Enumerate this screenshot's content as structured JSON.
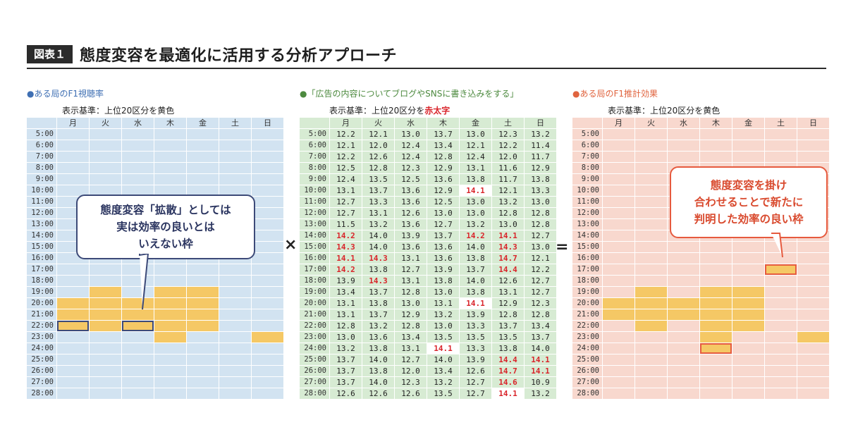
{
  "figure": {
    "label": "図表１",
    "title": "態度変容を最適化に活用する分析アプローチ"
  },
  "operators": {
    "times": "×",
    "equals": "="
  },
  "colors": {
    "blue_bg": "#d2e3f1",
    "green_bg": "#d7ebd3",
    "salmon_bg": "#f8d8ce",
    "highlight": "#f5c865",
    "red_text": "#d9252b",
    "callout_blue": "#3d4a78",
    "callout_red": "#e65a3e"
  },
  "chart_data": [
    {
      "type": "heatmap",
      "title": "●ある局のF1視聴率",
      "subtitle": "表示基準：上位20区分を黄色",
      "columns": [
        "月",
        "火",
        "水",
        "木",
        "金",
        "土",
        "日"
      ],
      "rows": [
        "5:00",
        "6:00",
        "7:00",
        "8:00",
        "9:00",
        "10:00",
        "11:00",
        "12:00",
        "13:00",
        "14:00",
        "15:00",
        "16:00",
        "17:00",
        "18:00",
        "19:00",
        "20:00",
        "21:00",
        "22:00",
        "23:00",
        "24:00",
        "25:00",
        "26:00",
        "27:00",
        "28:00"
      ],
      "highlighted": [
        [
          14,
          1
        ],
        [
          14,
          3
        ],
        [
          14,
          4
        ],
        [
          15,
          0
        ],
        [
          15,
          1
        ],
        [
          15,
          2
        ],
        [
          15,
          3
        ],
        [
          15,
          4
        ],
        [
          16,
          0
        ],
        [
          16,
          1
        ],
        [
          16,
          2
        ],
        [
          16,
          3
        ],
        [
          16,
          4
        ],
        [
          17,
          0
        ],
        [
          17,
          1
        ],
        [
          17,
          2
        ],
        [
          17,
          3
        ],
        [
          17,
          4
        ],
        [
          18,
          3
        ],
        [
          18,
          6
        ]
      ],
      "boxed": [
        [
          17,
          0
        ],
        [
          17,
          2
        ]
      ],
      "callout": [
        "態度変容「拡散」としては",
        "実は効率の良いとは",
        "いえない枠"
      ]
    },
    {
      "type": "table",
      "title": "●「広告の内容についてブログやSNSに書き込みをする」",
      "subtitle_prefix": "表示基準：上位20区分を",
      "subtitle_red": "赤太字",
      "columns": [
        "月",
        "火",
        "水",
        "木",
        "金",
        "土",
        "日"
      ],
      "rows": [
        "5:00",
        "6:00",
        "7:00",
        "8:00",
        "9:00",
        "10:00",
        "11:00",
        "12:00",
        "13:00",
        "14:00",
        "15:00",
        "16:00",
        "17:00",
        "18:00",
        "19:00",
        "20:00",
        "21:00",
        "22:00",
        "23:00",
        "24:00",
        "25:00",
        "26:00",
        "27:00",
        "28:00"
      ],
      "values": [
        [
          "12.2",
          "12.1",
          "13.0",
          "13.7",
          "13.0",
          "12.3",
          "13.2"
        ],
        [
          "12.1",
          "12.0",
          "12.4",
          "13.4",
          "12.1",
          "12.2",
          "11.4"
        ],
        [
          "12.2",
          "12.6",
          "12.4",
          "12.8",
          "12.4",
          "12.0",
          "11.7"
        ],
        [
          "12.5",
          "12.8",
          "12.3",
          "12.9",
          "13.1",
          "11.6",
          "12.9"
        ],
        [
          "12.4",
          "13.5",
          "12.5",
          "13.6",
          "13.8",
          "11.7",
          "13.8"
        ],
        [
          "13.1",
          "13.7",
          "13.6",
          "12.9",
          "14.1",
          "12.1",
          "13.3"
        ],
        [
          "12.7",
          "13.3",
          "13.6",
          "12.5",
          "13.0",
          "13.2",
          "13.0"
        ],
        [
          "12.7",
          "13.1",
          "12.6",
          "13.0",
          "13.0",
          "12.8",
          "12.8"
        ],
        [
          "11.5",
          "13.2",
          "13.6",
          "12.7",
          "13.2",
          "13.0",
          "12.8"
        ],
        [
          "14.2",
          "14.0",
          "13.9",
          "13.7",
          "14.2",
          "14.1",
          "12.7"
        ],
        [
          "14.3",
          "14.0",
          "13.6",
          "13.6",
          "14.0",
          "14.3",
          "13.0"
        ],
        [
          "14.1",
          "14.3",
          "13.1",
          "13.6",
          "13.8",
          "14.7",
          "12.1"
        ],
        [
          "14.2",
          "13.8",
          "12.7",
          "13.9",
          "13.7",
          "14.4",
          "12.2"
        ],
        [
          "13.9",
          "14.3",
          "13.1",
          "13.8",
          "14.0",
          "12.6",
          "12.7"
        ],
        [
          "13.4",
          "13.7",
          "12.8",
          "13.0",
          "13.8",
          "13.1",
          "12.7"
        ],
        [
          "13.1",
          "13.8",
          "13.0",
          "13.1",
          "14.1",
          "12.9",
          "12.3"
        ],
        [
          "13.1",
          "13.7",
          "12.9",
          "13.2",
          "13.9",
          "12.8",
          "12.8"
        ],
        [
          "12.8",
          "13.2",
          "12.8",
          "13.0",
          "13.3",
          "13.7",
          "13.4"
        ],
        [
          "13.0",
          "13.6",
          "13.4",
          "13.5",
          "13.5",
          "13.5",
          "13.7"
        ],
        [
          "13.2",
          "13.8",
          "13.1",
          "14.1",
          "13.3",
          "13.8",
          "14.0"
        ],
        [
          "13.7",
          "14.0",
          "12.7",
          "14.0",
          "13.9",
          "14.4",
          "14.1"
        ],
        [
          "13.7",
          "13.8",
          "12.0",
          "13.4",
          "12.6",
          "14.7",
          "14.1"
        ],
        [
          "13.7",
          "14.0",
          "12.3",
          "13.2",
          "12.7",
          "14.6",
          "10.9"
        ],
        [
          "12.6",
          "12.6",
          "12.6",
          "13.5",
          "12.7",
          "14.1",
          "13.2"
        ]
      ],
      "red_cells": [
        [
          5,
          4
        ],
        [
          9,
          0
        ],
        [
          9,
          4
        ],
        [
          9,
          5
        ],
        [
          10,
          0
        ],
        [
          10,
          5
        ],
        [
          11,
          0
        ],
        [
          11,
          1
        ],
        [
          11,
          5
        ],
        [
          12,
          0
        ],
        [
          12,
          5
        ],
        [
          13,
          1
        ],
        [
          15,
          4
        ],
        [
          19,
          3
        ],
        [
          20,
          5
        ],
        [
          20,
          6
        ],
        [
          21,
          5
        ],
        [
          21,
          6
        ],
        [
          22,
          5
        ],
        [
          23,
          5
        ]
      ],
      "white_cells": [
        [
          5,
          4
        ],
        [
          15,
          4
        ],
        [
          19,
          3
        ],
        [
          23,
          5
        ]
      ]
    },
    {
      "type": "heatmap",
      "title": "●ある局のF1推計効果",
      "subtitle": "表示基準：上位20区分を黄色",
      "columns": [
        "月",
        "火",
        "水",
        "木",
        "金",
        "土",
        "日"
      ],
      "rows": [
        "5:00",
        "6:00",
        "7:00",
        "8:00",
        "9:00",
        "10:00",
        "11:00",
        "12:00",
        "13:00",
        "14:00",
        "15:00",
        "16:00",
        "17:00",
        "18:00",
        "19:00",
        "20:00",
        "21:00",
        "22:00",
        "23:00",
        "24:00",
        "25:00",
        "26:00",
        "27:00",
        "28:00"
      ],
      "highlighted": [
        [
          12,
          5
        ],
        [
          14,
          1
        ],
        [
          14,
          3
        ],
        [
          14,
          4
        ],
        [
          15,
          0
        ],
        [
          15,
          1
        ],
        [
          15,
          2
        ],
        [
          15,
          3
        ],
        [
          15,
          4
        ],
        [
          16,
          0
        ],
        [
          16,
          1
        ],
        [
          16,
          2
        ],
        [
          16,
          3
        ],
        [
          16,
          4
        ],
        [
          17,
          1
        ],
        [
          17,
          3
        ],
        [
          17,
          4
        ],
        [
          18,
          3
        ],
        [
          18,
          6
        ],
        [
          19,
          3
        ]
      ],
      "boxed": [
        [
          12,
          5
        ],
        [
          19,
          3
        ]
      ],
      "callout": [
        "態度変容を掛け",
        "合わせることで新たに",
        "判明した効率の良い枠"
      ]
    }
  ]
}
